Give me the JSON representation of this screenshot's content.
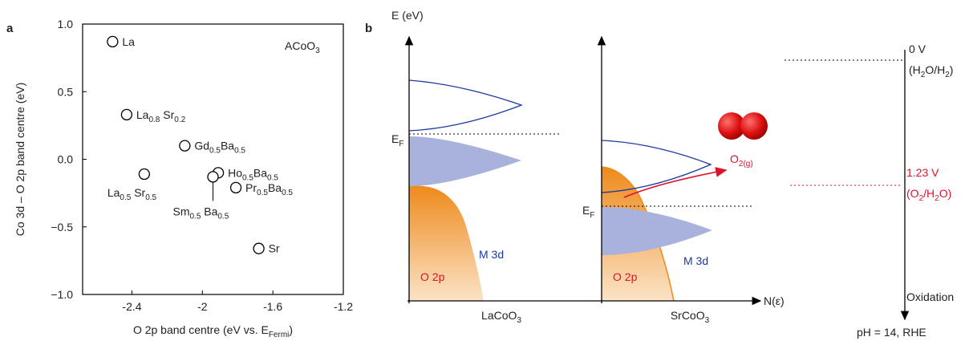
{
  "chart_data": {
    "type": "scatter",
    "panel": "a",
    "title": [
      "ACoO",
      "3"
    ],
    "xlabel": [
      "O 2p band centre (eV vs. E",
      "Fermi",
      ")"
    ],
    "ylabel": "Co 3d – O 2p band centre (eV)",
    "x": [
      -2.51,
      -2.43,
      -2.1,
      -2.33,
      -1.91,
      -1.94,
      -1.81,
      -1.68
    ],
    "values": [
      0.87,
      0.33,
      0.1,
      -0.11,
      -0.1,
      -0.13,
      -0.21,
      -0.66
    ],
    "labels": [
      [
        "La"
      ],
      [
        "La",
        "0.8",
        " Sr",
        "0.2"
      ],
      [
        "Gd",
        "0.5",
        "Ba",
        "0.5"
      ],
      [
        "La",
        "0.5",
        " Sr",
        "0.5"
      ],
      [
        "Ho",
        "0.5",
        "Ba",
        "0.5"
      ],
      [
        "Sm",
        "0.5",
        " Ba",
        "0.5"
      ],
      [
        "Pr",
        "0.5",
        "Ba",
        "0.5"
      ],
      [
        "Sr"
      ]
    ],
    "xlim": [
      -2.68,
      -1.2
    ],
    "xticks": [
      -2.4,
      -2.0,
      -1.6,
      -1.2
    ],
    "ylim": [
      -1.0,
      1.0
    ],
    "yticks": [
      {
        "value": -1.0,
        "label": "−1.0"
      },
      {
        "value": -0.5,
        "label": "−0.5"
      },
      {
        "value": 0,
        "label": "0.0"
      },
      0.5,
      {
        "value": 1.0,
        "label": "1.0"
      }
    ],
    "color": "#000000"
  },
  "diagram": {
    "panel": "b",
    "energy_axis": "E (eV)",
    "dos_axis": "N(ε)",
    "fermi_left": [
      "E",
      "F"
    ],
    "fermi_right": [
      "E",
      "F"
    ],
    "m3d_left": "M 3d",
    "m3d_right": "M 3d",
    "o2p_left": "O 2p",
    "o2p_right": "O 2p",
    "o2_gas": [
      "O",
      "2(g)"
    ],
    "material_left": [
      "LaCoO",
      "3"
    ],
    "material_right": [
      "SrCoO",
      "3"
    ],
    "potential_0": "0 V",
    "couple_0": [
      "(H",
      "2",
      "O/H",
      "2",
      ")"
    ],
    "potential_123": "1.23 V",
    "couple_123": [
      "(O",
      "2",
      "/H",
      "2",
      "O)"
    ],
    "oxidation": "Oxidation",
    "scale": "pH = 14, RHE"
  }
}
